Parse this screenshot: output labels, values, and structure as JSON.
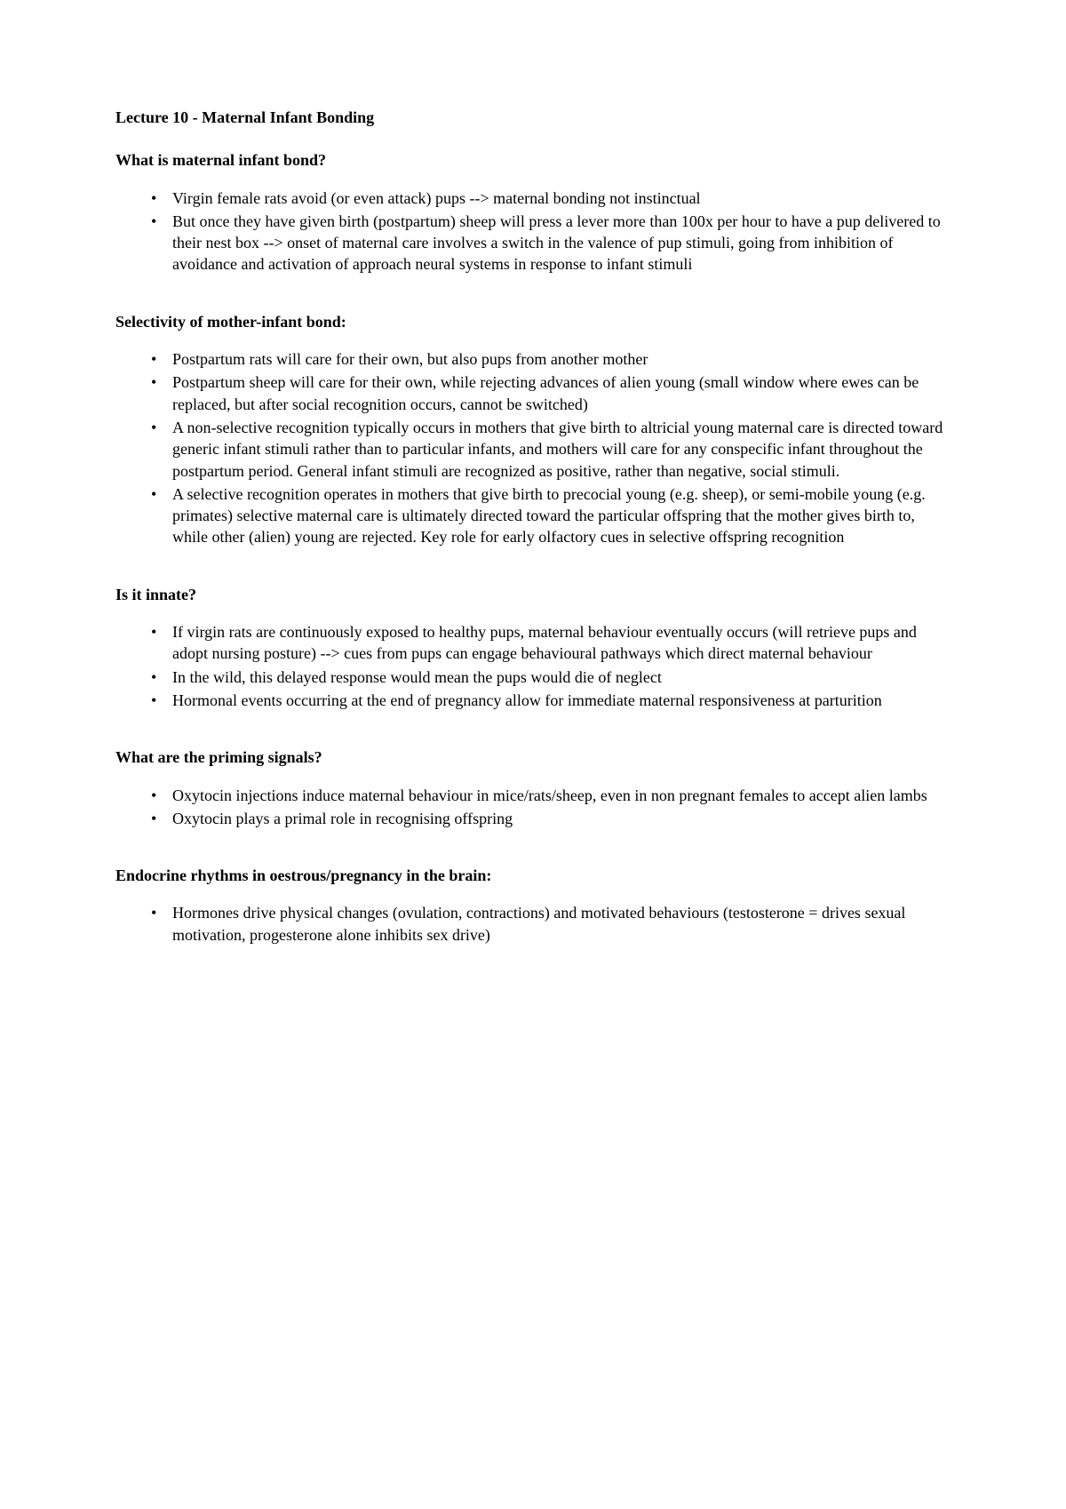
{
  "title": "Lecture 10 - Maternal Infant Bonding",
  "sections": [
    {
      "heading": "What is maternal infant bond?",
      "items": [
        "Virgin female rats avoid (or even attack) pups --> maternal bonding not instinctual",
        "But once they have given birth (postpartum) sheep will press a lever more than 100x per hour to have a pup delivered to their nest box --> onset of maternal care involves a switch in the valence of pup stimuli, going from inhibition of avoidance and activation of approach neural systems in response to infant stimuli"
      ]
    },
    {
      "heading": "Selectivity of mother-infant bond:",
      "items": [
        "Postpartum rats will care for their own, but also pups from another mother",
        "Postpartum sheep will care for their own, while rejecting advances of alien young (small window where ewes can be replaced, but after social recognition occurs, cannot be switched)",
        "A non-selective recognition typically occurs in mothers that give birth to altricial young maternal care is directed toward generic infant stimuli rather than to particular infants, and mothers will care for any conspecific infant throughout the postpartum period. General infant stimuli are recognized as positive, rather than negative, social stimuli.",
        "A selective recognition operates in mothers that give birth to precocial young (e.g. sheep), or semi-mobile young (e.g. primates) selective maternal care is ultimately directed toward the particular offspring that the mother gives birth to, while other (alien) young are rejected. Key role for early olfactory cues in selective offspring recognition"
      ]
    },
    {
      "heading": "Is it innate?",
      "items": [
        "If virgin rats are continuously exposed to healthy pups, maternal behaviour eventually occurs (will retrieve pups and adopt nursing posture) --> cues from pups can engage behavioural pathways which direct maternal behaviour",
        "In the wild, this delayed response would mean the pups would die of neglect",
        "Hormonal events occurring at the end of pregnancy allow for immediate maternal responsiveness at parturition"
      ]
    },
    {
      "heading": "What are the priming signals?",
      "items": [
        "Oxytocin injections induce maternal behaviour in mice/rats/sheep, even in non pregnant females to accept alien lambs",
        "Oxytocin plays a primal role in recognising offspring"
      ]
    },
    {
      "heading": "Endocrine rhythms in oestrous/pregnancy in the brain:",
      "items": [
        "Hormones drive physical changes (ovulation, contractions) and motivated behaviours (testosterone = drives sexual motivation, progesterone alone inhibits sex drive)"
      ]
    }
  ]
}
